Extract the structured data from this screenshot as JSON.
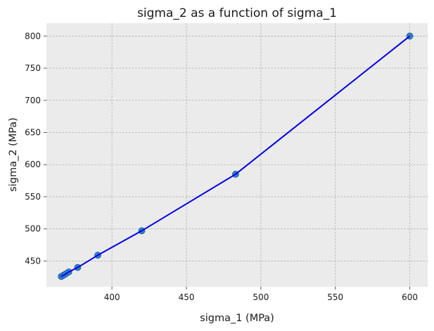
{
  "chart_data": {
    "type": "line",
    "title": "sigma_2 as a function of sigma_1",
    "xlabel": "sigma_1 (MPa)",
    "ylabel": "sigma_2 (MPa)",
    "xlim": [
      356,
      612
    ],
    "ylim": [
      410,
      820
    ],
    "xticks": [
      400,
      450,
      500,
      550,
      600
    ],
    "yticks": [
      450,
      500,
      550,
      600,
      650,
      700,
      750,
      800
    ],
    "grid": true,
    "colors": {
      "background": "#ebebeb",
      "line": "#0000ee",
      "marker": "#2f7fc9",
      "marker_edge": "#1f5f9f"
    },
    "series": [
      {
        "x": [
          366,
          367.5,
          369,
          371,
          377,
          390.5,
          420,
          483,
          600
        ],
        "y": [
          426,
          428,
          430,
          433,
          440,
          459,
          497,
          585,
          800
        ]
      }
    ]
  }
}
